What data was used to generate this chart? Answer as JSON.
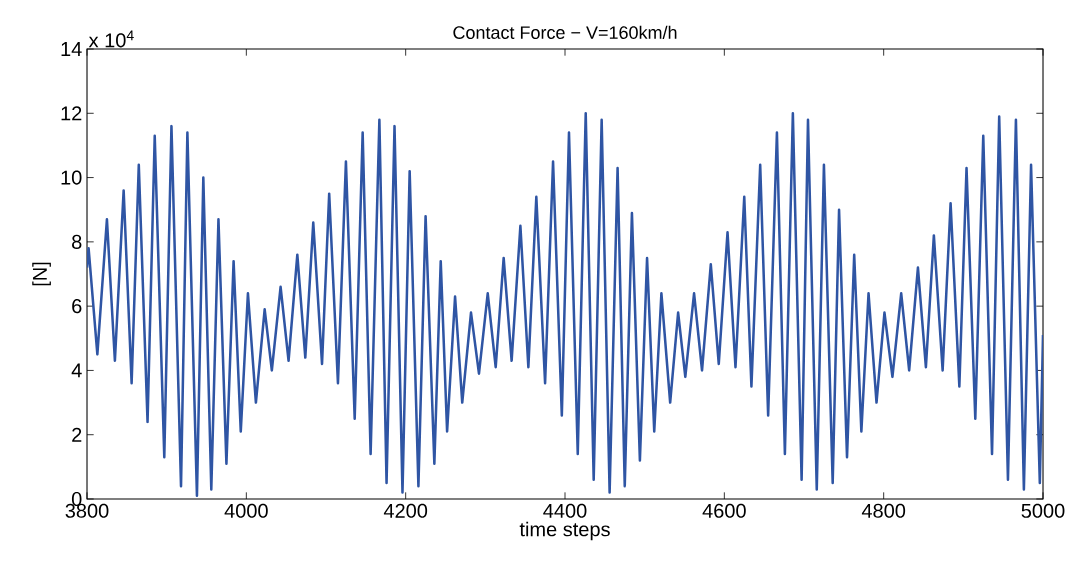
{
  "chart_data": {
    "type": "line",
    "title": "Contact Force − V=160km/h",
    "xlabel": "time steps",
    "ylabel": "[N]",
    "annotations": [
      "x 10$^{4}$"
    ],
    "x": [
      3800,
      3802,
      3813,
      3825,
      3835,
      3846,
      3856,
      3865,
      3876,
      3885,
      3897,
      3906,
      3918,
      3926,
      3938,
      3946,
      3956,
      3965,
      3975,
      3984,
      3993,
      4002,
      4012,
      4023,
      4032,
      4043,
      4053,
      4064,
      4074,
      4084,
      4095,
      4104,
      4115,
      4125,
      4136,
      4146,
      4156,
      4167,
      4176,
      4186,
      4196,
      4205,
      4216,
      4225,
      4236,
      4244,
      4252,
      4262,
      4271,
      4282,
      4292,
      4303,
      4313,
      4323,
      4333,
      4344,
      4354,
      4364,
      4375,
      4385,
      4396,
      4405,
      4416,
      4426,
      4436,
      4446,
      4456,
      4466,
      4475,
      4484,
      4494,
      4503,
      4512,
      4521,
      4532,
      4542,
      4551,
      4562,
      4572,
      4583,
      4593,
      4604,
      4614,
      4625,
      4634,
      4645,
      4655,
      4666,
      4676,
      4686,
      4697,
      4705,
      4716,
      4725,
      4736,
      4744,
      4754,
      4763,
      4772,
      4781,
      4791,
      4801,
      4811,
      4822,
      4832,
      4843,
      4853,
      4863,
      4874,
      4884,
      4895,
      4904,
      4915,
      4925,
      4936,
      4945,
      4956,
      4966,
      4976,
      4985,
      4996,
      5000
    ],
    "series": [
      {
        "color": "#2f55a4",
        "values": [
          7.2,
          7.8,
          4.5,
          8.7,
          4.3,
          9.6,
          3.6,
          10.4,
          2.4,
          11.3,
          1.3,
          11.6,
          0.4,
          11.4,
          0.1,
          10.0,
          0.3,
          8.7,
          1.1,
          7.4,
          2.1,
          6.4,
          3.0,
          5.9,
          4.0,
          6.6,
          4.3,
          7.6,
          4.4,
          8.6,
          4.2,
          9.5,
          3.6,
          10.5,
          2.5,
          11.4,
          1.4,
          11.8,
          0.5,
          11.6,
          0.2,
          10.2,
          0.4,
          8.8,
          1.1,
          7.4,
          2.1,
          6.3,
          3.0,
          5.8,
          3.9,
          6.4,
          4.1,
          7.5,
          4.3,
          8.5,
          4.1,
          9.4,
          3.6,
          10.5,
          2.6,
          11.4,
          1.4,
          12.0,
          0.6,
          11.8,
          0.2,
          10.3,
          0.4,
          8.9,
          1.2,
          7.5,
          2.1,
          6.4,
          3.0,
          5.8,
          3.8,
          6.4,
          4.0,
          7.3,
          4.2,
          8.3,
          4.1,
          9.4,
          3.5,
          10.4,
          2.6,
          11.4,
          1.4,
          12.0,
          0.6,
          11.8,
          0.3,
          10.4,
          0.5,
          9.0,
          1.3,
          7.6,
          2.1,
          6.4,
          3.0,
          5.8,
          3.8,
          6.4,
          4.0,
          7.2,
          4.1,
          8.2,
          4.0,
          9.2,
          3.5,
          10.3,
          2.5,
          11.3,
          1.4,
          11.9,
          0.6,
          11.8,
          0.3,
          10.4,
          0.5,
          5.1
        ]
      }
    ],
    "xlim": [
      3800,
      5000
    ],
    "ylim": [
      0,
      14
    ],
    "xticks": [
      3800,
      4000,
      4200,
      4400,
      4600,
      4800,
      5000
    ],
    "yticks": [
      0,
      2,
      4,
      6,
      8,
      10,
      12,
      14
    ]
  }
}
